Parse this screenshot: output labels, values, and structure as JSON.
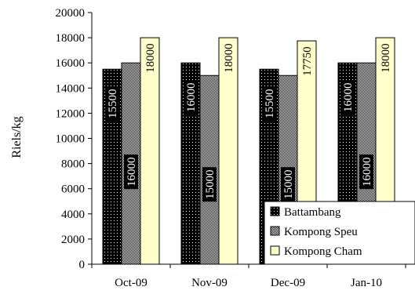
{
  "chart_data": {
    "type": "bar",
    "title": "",
    "xlabel": "",
    "ylabel": "Riels/kg",
    "ylim": [
      0,
      20000
    ],
    "yticks": [
      0,
      2000,
      4000,
      6000,
      8000,
      10000,
      12000,
      14000,
      16000,
      18000,
      20000
    ],
    "categories": [
      "Oct-09",
      "Nov-09",
      "Dec-09",
      "Jan-10"
    ],
    "series": [
      {
        "name": "Battambang",
        "values": [
          15500,
          16000,
          15500,
          16000
        ],
        "pattern": "dots-on-black",
        "color": "#000000"
      },
      {
        "name": "Kompong Speu",
        "values": [
          16000,
          15000,
          15000,
          16000
        ],
        "pattern": "fine-checker",
        "color": "#555555"
      },
      {
        "name": "Kompong Cham",
        "values": [
          18000,
          18000,
          17750,
          18000
        ],
        "pattern": "solid",
        "color": "#ffffcc"
      }
    ],
    "data_labels": [
      [
        "15500",
        "16000",
        "15500",
        "16000"
      ],
      [
        "16000",
        "15000",
        "15000",
        "16000"
      ],
      [
        "18000",
        "18000",
        "17750",
        "18000"
      ]
    ],
    "grid": false,
    "legend_position": "bottom-right"
  }
}
